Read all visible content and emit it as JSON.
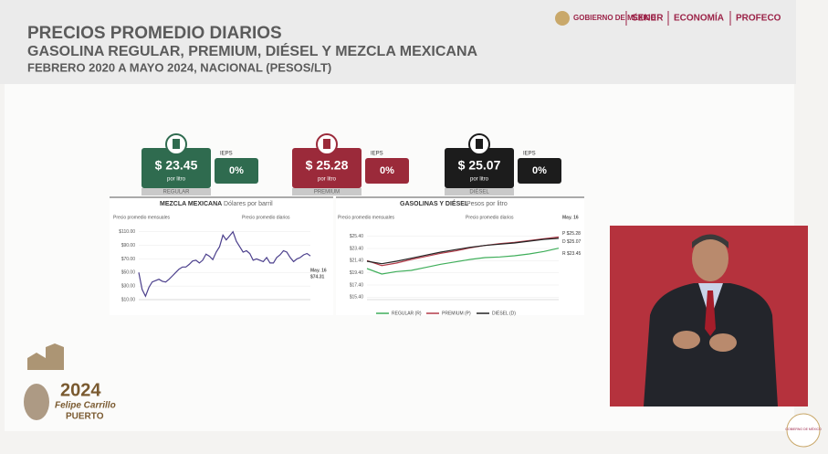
{
  "header": {
    "title": "PRECIOS PROMEDIO DIARIOS",
    "subtitle": "GASOLINA REGULAR, PREMIUM, DIÉSEL Y MEZCLA MEXICANA",
    "period": "FEBRERO 2020 A MAYO 2024, NACIONAL (PESOS/LT)"
  },
  "logos": [
    "GOBIERNO DE MÉXICO",
    "SENER",
    "ECONOMÍA",
    "PROFECO"
  ],
  "prices": [
    {
      "value": "$ 23.45",
      "unit": "por litro",
      "label": "REGULAR",
      "tax_label": "IEPS",
      "tax": "0%",
      "color": "#2f6b4f"
    },
    {
      "value": "$ 25.28",
      "unit": "por litro",
      "label": "PREMIUM",
      "tax_label": "IEPS",
      "tax": "0%",
      "color": "#9b2a3a"
    },
    {
      "value": "$ 25.07",
      "unit": "por litro",
      "label": "DIÉSEL",
      "tax_label": "IEPS",
      "tax": "0%",
      "color": "#1c1c1c"
    }
  ],
  "chart_data": [
    {
      "type": "line",
      "title": "MEZCLA MEXICANA",
      "unit": "Dólares por barril",
      "annotations": [
        "Precio promedio mensuales",
        "Precio promedio diarios",
        "May. 16",
        "$74.31"
      ],
      "color": "#4b3f8c",
      "values": [
        50,
        25,
        15,
        28,
        36,
        38,
        40,
        37,
        36,
        40,
        45,
        50,
        55,
        58,
        58,
        62,
        67,
        68,
        64,
        68,
        77,
        74,
        69,
        80,
        88,
        105,
        98,
        104,
        110,
        96,
        88,
        80,
        82,
        78,
        68,
        70,
        68,
        66,
        72,
        64,
        64,
        72,
        76,
        82,
        80,
        72,
        66,
        70,
        72,
        76,
        78,
        74.31
      ],
      "ylim": [
        10,
        115
      ],
      "yticks": [
        {
          "value": 110,
          "label": "$110.00"
        },
        {
          "value": 90,
          "label": "$90.00"
        },
        {
          "value": 70,
          "label": "$70.00"
        },
        {
          "value": 50,
          "label": "$50.00"
        },
        {
          "value": 30,
          "label": "$30.00"
        },
        {
          "value": 10,
          "label": "$10.00"
        }
      ]
    },
    {
      "type": "line",
      "title": "GASOLINAS Y DIÉSEL",
      "unit": "Pesos por litro",
      "annotations": [
        "Precio promedio mensuales",
        "Precio promedio diarios",
        "May. 16"
      ],
      "series": [
        {
          "name": "REGULAR (R)",
          "color": "#3fae5a",
          "end_label": "R $23.45",
          "values": [
            20.1,
            19.2,
            19.6,
            19.8,
            20.3,
            20.8,
            21.2,
            21.6,
            21.9,
            22.0,
            22.2,
            22.5,
            22.9,
            23.45
          ]
        },
        {
          "name": "PREMIUM (P)",
          "color": "#b23a48",
          "end_label": "P $25.28",
          "values": [
            21.4,
            20.6,
            21.0,
            21.6,
            22.1,
            22.6,
            23.0,
            23.5,
            23.9,
            24.2,
            24.4,
            24.7,
            25.0,
            25.28
          ]
        },
        {
          "name": "DIÉSEL (D)",
          "color": "#222222",
          "end_label": "D $25.07",
          "values": [
            21.3,
            20.9,
            21.3,
            21.8,
            22.3,
            22.8,
            23.2,
            23.6,
            23.9,
            24.1,
            24.3,
            24.6,
            24.9,
            25.07
          ]
        }
      ],
      "ylim": [
        15,
        26.4
      ],
      "yticks": [
        {
          "value": 25.4,
          "label": "$25.40"
        },
        {
          "value": 23.4,
          "label": "$23.40"
        },
        {
          "value": 21.4,
          "label": "$21.40"
        },
        {
          "value": 19.4,
          "label": "$19.40"
        },
        {
          "value": 17.4,
          "label": "$17.40"
        },
        {
          "value": 15.4,
          "label": "$15.40"
        }
      ],
      "legend": "bottom"
    }
  ],
  "footer_logo": {
    "year": "2024",
    "name": "Felipe Carrillo",
    "place": "PUERTO"
  },
  "corner_logo": "GOBIERNO DE MÉXICO"
}
